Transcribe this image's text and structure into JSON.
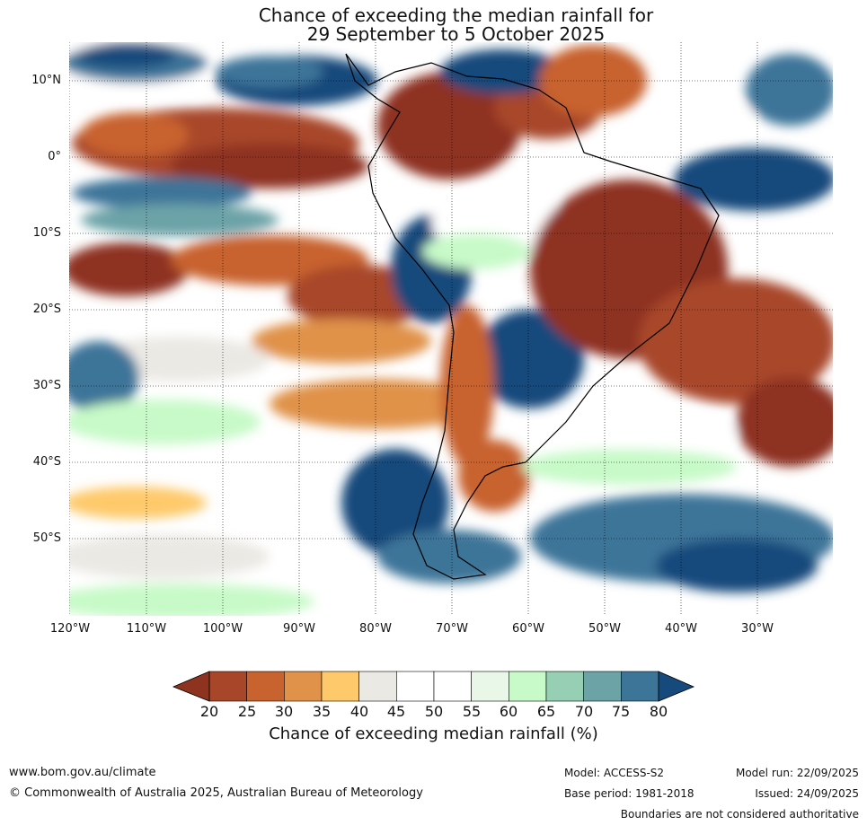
{
  "title": {
    "line1": "Chance of exceeding the median rainfall for",
    "line2": "29 September to 5 October 2025"
  },
  "map": {
    "lat_labels": [
      "10°N",
      "0°",
      "10°S",
      "20°S",
      "30°S",
      "40°S",
      "50°S"
    ],
    "lon_labels": [
      "120°W",
      "110°W",
      "100°W",
      "90°W",
      "80°W",
      "70°W",
      "60°W",
      "50°W",
      "40°W",
      "30°W"
    ],
    "gridline_style": "dotted",
    "ocean_color": "#ffffff",
    "coastline_color": "#000000",
    "border_color": "#808080"
  },
  "colorbar": {
    "ticks": [
      "20",
      "25",
      "30",
      "35",
      "40",
      "45",
      "50",
      "55",
      "60",
      "65",
      "70",
      "75",
      "80"
    ],
    "colors": [
      "#a8462a",
      "#c8622f",
      "#e0924a",
      "#fec96a",
      "#ebe9e4",
      "#ffffff",
      "#ffffff",
      "#e9f7e9",
      "#c7fac8",
      "#97cfb5",
      "#6ca3a7",
      "#3d7599"
    ],
    "under_color": "#8e3320",
    "over_color": "#174a7c",
    "label": "Chance of exceeding median rainfall (%)"
  },
  "footer": {
    "website": "www.bom.gov.au/climate",
    "copyright": "© Commonwealth of Australia 2025, Australian Bureau of Meteorology",
    "model": "Model: ACCESS-S2",
    "base_period": "Base period: 1981-2018",
    "model_run": "Model run: 22/09/2025",
    "issued": "Issued: 24/09/2025",
    "disclaimer": "Boundaries are not considered authoritative"
  }
}
